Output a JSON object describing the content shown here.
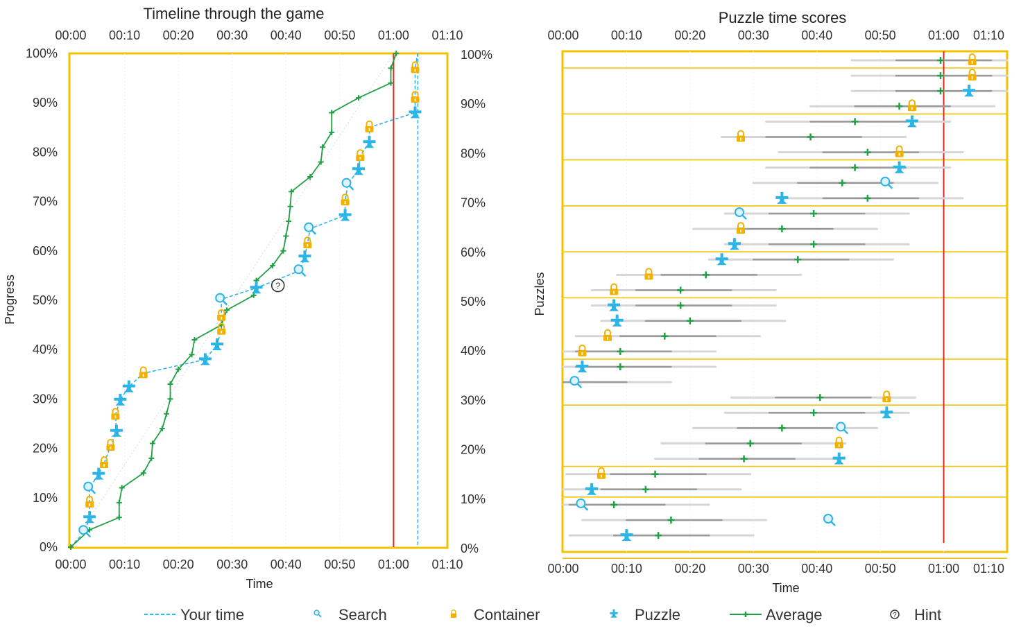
{
  "chart_data": [
    {
      "type": "line",
      "title": "Timeline through the game",
      "xlabel": "Time",
      "ylabel": "Progress",
      "xlim_minutes": [
        0,
        70
      ],
      "ylim_percent": [
        0,
        100
      ],
      "x_ticks": [
        "00:00",
        "00:10",
        "00:20",
        "00:30",
        "00:40",
        "00:50",
        "01:00",
        "01:10"
      ],
      "y_ticks": [
        "0%",
        "10%",
        "20%",
        "30%",
        "40%",
        "50%",
        "60%",
        "70%",
        "80%",
        "90%",
        "100%"
      ],
      "marker_time_minutes": 60,
      "series": [
        {
          "name": "Your time",
          "color": "#2bb4e6",
          "points": [
            {
              "t": 0,
              "p": 0,
              "kind": "none"
            },
            {
              "t": 2.6,
              "p": 3.2,
              "kind": "search"
            },
            {
              "t": 3.5,
              "p": 6,
              "kind": "puzzle"
            },
            {
              "t": 3.5,
              "p": 9,
              "kind": "container"
            },
            {
              "t": 3.5,
              "p": 12,
              "kind": "search"
            },
            {
              "t": 5.2,
              "p": 14.8,
              "kind": "puzzle"
            },
            {
              "t": 6.2,
              "p": 17,
              "kind": "container"
            },
            {
              "t": 7.4,
              "p": 20.5,
              "kind": "container"
            },
            {
              "t": 8.5,
              "p": 23.5,
              "kind": "puzzle"
            },
            {
              "t": 8.3,
              "p": 26.8,
              "kind": "container"
            },
            {
              "t": 9.2,
              "p": 29.8,
              "kind": "puzzle"
            },
            {
              "t": 10.8,
              "p": 32.5,
              "kind": "puzzle"
            },
            {
              "t": 13.5,
              "p": 35.2,
              "kind": "container"
            },
            {
              "t": 25,
              "p": 38,
              "kind": "puzzle"
            },
            {
              "t": 27.2,
              "p": 41,
              "kind": "puzzle"
            },
            {
              "t": 28,
              "p": 44,
              "kind": "container"
            },
            {
              "t": 28,
              "p": 46.8,
              "kind": "container"
            },
            {
              "t": 28,
              "p": 50.2,
              "kind": "search"
            },
            {
              "t": 34.5,
              "p": 52.5,
              "kind": "puzzle"
            },
            {
              "t": 42.6,
              "p": 56,
              "kind": "search"
            },
            {
              "t": 43.5,
              "p": 58.8,
              "kind": "puzzle"
            },
            {
              "t": 44,
              "p": 61.5,
              "kind": "container"
            },
            {
              "t": 44.5,
              "p": 64.5,
              "kind": "search"
            },
            {
              "t": 51,
              "p": 67.2,
              "kind": "puzzle"
            },
            {
              "t": 51,
              "p": 70.2,
              "kind": "container"
            },
            {
              "t": 51.5,
              "p": 73.5,
              "kind": "search"
            },
            {
              "t": 53.5,
              "p": 76.5,
              "kind": "puzzle"
            },
            {
              "t": 53.8,
              "p": 79.2,
              "kind": "container"
            },
            {
              "t": 55.5,
              "p": 82,
              "kind": "puzzle"
            },
            {
              "t": 55.5,
              "p": 85,
              "kind": "container"
            },
            {
              "t": 64,
              "p": 88,
              "kind": "puzzle"
            },
            {
              "t": 64,
              "p": 91,
              "kind": "container"
            },
            {
              "t": 64,
              "p": 97,
              "kind": "container"
            },
            {
              "t": 64.5,
              "p": 100,
              "kind": "none"
            }
          ],
          "hint": {
            "t": 38.5,
            "p": 53
          }
        },
        {
          "name": "Average",
          "color": "#22a045",
          "points": [
            {
              "t": 0,
              "p": 0
            },
            {
              "t": 3.5,
              "p": 3.5
            },
            {
              "t": 9,
              "p": 6
            },
            {
              "t": 9,
              "p": 9
            },
            {
              "t": 9.5,
              "p": 12
            },
            {
              "t": 13.5,
              "p": 15
            },
            {
              "t": 15,
              "p": 18
            },
            {
              "t": 15.2,
              "p": 21
            },
            {
              "t": 17,
              "p": 24
            },
            {
              "t": 17.8,
              "p": 27
            },
            {
              "t": 18.5,
              "p": 30
            },
            {
              "t": 18.5,
              "p": 33
            },
            {
              "t": 20,
              "p": 36
            },
            {
              "t": 22.5,
              "p": 39
            },
            {
              "t": 23,
              "p": 42
            },
            {
              "t": 28,
              "p": 45
            },
            {
              "t": 29,
              "p": 48
            },
            {
              "t": 34,
              "p": 51
            },
            {
              "t": 34.5,
              "p": 54
            },
            {
              "t": 37.5,
              "p": 57
            },
            {
              "t": 39.5,
              "p": 60
            },
            {
              "t": 40,
              "p": 63
            },
            {
              "t": 40.5,
              "p": 66
            },
            {
              "t": 40.8,
              "p": 69
            },
            {
              "t": 41,
              "p": 72
            },
            {
              "t": 44.5,
              "p": 75
            },
            {
              "t": 46.5,
              "p": 78
            },
            {
              "t": 46.8,
              "p": 81
            },
            {
              "t": 48.5,
              "p": 84
            },
            {
              "t": 48.5,
              "p": 88
            },
            {
              "t": 53.5,
              "p": 91
            },
            {
              "t": 59.5,
              "p": 94
            },
            {
              "t": 59.5,
              "p": 97
            },
            {
              "t": 60.5,
              "p": 100
            }
          ]
        }
      ]
    },
    {
      "type": "scatter",
      "title": "Puzzle time scores",
      "xlabel": "Time",
      "ylabel": "Puzzles",
      "xlim_minutes": [
        0,
        70
      ],
      "x_ticks": [
        "00:00",
        "00:10",
        "00:20",
        "00:30",
        "00:40",
        "00:50",
        "01:00",
        "01:10"
      ],
      "marker_time_minutes": 60,
      "group_separators_after_row": [
        0,
        3,
        6,
        9,
        12,
        15,
        19,
        22,
        26,
        28,
        32
      ],
      "rows": [
        {
          "you": 64.5,
          "kind": "container",
          "avg": 59.5
        },
        {
          "you": 64.5,
          "kind": "container",
          "avg": 59.5
        },
        {
          "you": 64,
          "kind": "puzzle",
          "avg": 59.5
        },
        {
          "you": 55,
          "kind": "container",
          "avg": 53
        },
        {
          "you": 55,
          "kind": "puzzle",
          "avg": 46
        },
        {
          "you": 28,
          "kind": "container",
          "avg": 39
        },
        {
          "you": 53,
          "kind": "container",
          "avg": 48
        },
        {
          "you": 53,
          "kind": "puzzle",
          "avg": 46
        },
        {
          "you": 51,
          "kind": "search",
          "avg": 44
        },
        {
          "you": 34.5,
          "kind": "puzzle",
          "avg": 48
        },
        {
          "you": 28,
          "kind": "search",
          "avg": 39.5
        },
        {
          "you": 28,
          "kind": "container",
          "avg": 34.5
        },
        {
          "you": 27,
          "kind": "puzzle",
          "avg": 39.5
        },
        {
          "you": 25,
          "kind": "puzzle",
          "avg": 37
        },
        {
          "you": 13.5,
          "kind": "container",
          "avg": 22.5
        },
        {
          "you": 8,
          "kind": "container",
          "avg": 18.5
        },
        {
          "you": 8,
          "kind": "puzzle",
          "avg": 18.5
        },
        {
          "you": 8.5,
          "kind": "puzzle",
          "avg": 20
        },
        {
          "you": 7,
          "kind": "container",
          "avg": 16
        },
        {
          "you": 3,
          "kind": "container",
          "avg": 9
        },
        {
          "you": 3,
          "kind": "puzzle",
          "avg": 9
        },
        {
          "you": 2,
          "kind": "search",
          "avg": null
        },
        {
          "you": 51,
          "kind": "container",
          "avg": 40.5
        },
        {
          "you": 51,
          "kind": "puzzle",
          "avg": 39.5
        },
        {
          "you": 44,
          "kind": "search",
          "avg": 34.5
        },
        {
          "you": 43.5,
          "kind": "container",
          "avg": 29.5
        },
        {
          "you": 43.5,
          "kind": "puzzle",
          "avg": 28.5
        },
        {
          "you": 6,
          "kind": "container",
          "avg": 14.5
        },
        {
          "you": 4.5,
          "kind": "puzzle",
          "avg": 13
        },
        {
          "you": 3,
          "kind": "search",
          "avg": 8
        },
        {
          "you": 42,
          "kind": "search",
          "avg": 17
        },
        {
          "you": 10,
          "kind": "puzzle",
          "avg": 15
        }
      ]
    }
  ],
  "legend": [
    {
      "label": "Your time",
      "icon": "dashed-line-icon",
      "color": "#2bb4e6"
    },
    {
      "label": "Search",
      "icon": "search-icon",
      "color": "#2bb4e6"
    },
    {
      "label": "Container",
      "icon": "padlock-icon",
      "color": "#f2b000"
    },
    {
      "label": "Puzzle",
      "icon": "puzzle-figure-icon",
      "color": "#2bb4e6"
    },
    {
      "label": "Average",
      "icon": "average-line-icon",
      "color": "#22a045"
    },
    {
      "label": "Hint",
      "icon": "hint-icon",
      "color": "#333333"
    }
  ],
  "colors": {
    "frame": "#f2c200",
    "marker_line": "#e0281e",
    "you": "#2bb4e6",
    "container": "#f2b000",
    "average": "#22a045"
  }
}
